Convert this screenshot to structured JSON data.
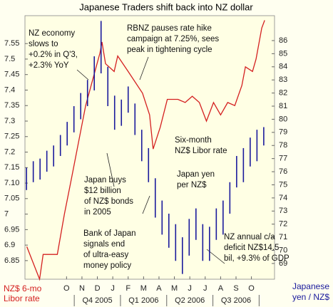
{
  "chart_data": {
    "type": "line-ohlc",
    "title": "Japanese Traders shift back into NZ dollar",
    "y_label": [
      "NZ$ 6-mo",
      "Libor rate"
    ],
    "y2_label": [
      "Japanese",
      "yen / NZ$"
    ],
    "xlim": [
      -2.7,
      13.5
    ],
    "xticks": [
      {
        "value": 0,
        "label": "O"
      },
      {
        "value": 1,
        "label": "N"
      },
      {
        "value": 2,
        "label": "D"
      },
      {
        "value": 3,
        "label": "J"
      },
      {
        "value": 4,
        "label": "F"
      },
      {
        "value": 5,
        "label": "M"
      },
      {
        "value": 6,
        "label": "A"
      },
      {
        "value": 7,
        "label": "M"
      },
      {
        "value": 8,
        "label": "J"
      },
      {
        "value": 9,
        "label": "J"
      },
      {
        "value": 10,
        "label": "A"
      },
      {
        "value": 11,
        "label": "S"
      },
      {
        "value": 12,
        "label": "O"
      }
    ],
    "quarters": [
      "Q4 2005",
      "Q1 2006",
      "Q2 2006",
      "Q3 2006"
    ],
    "ylim": [
      6.79,
      7.64
    ],
    "yticks": [
      6.85,
      6.9,
      6.95,
      7,
      7.05,
      {
        "value": 7.1,
        "label": "7.10"
      },
      7.15,
      7.2,
      7.25,
      7.3,
      7.35,
      7.4,
      7.45,
      7.5,
      7.55
    ],
    "y2lim": [
      67.8,
      87.9
    ],
    "y2ticks": [
      69,
      70,
      71,
      72,
      73,
      74,
      75,
      76,
      77,
      78,
      79,
      80,
      81,
      82,
      83,
      84,
      85,
      86
    ],
    "series": [
      {
        "name": "Six-month NZ$ Libor rate",
        "color": "#d42020",
        "x": [
          -2.58,
          -1.75,
          -1.52,
          -0.6,
          -0.14,
          0.32,
          1.24,
          2.17,
          2.3,
          2.53,
          3.09,
          3.32,
          4.0,
          4.93,
          5.39,
          5.62,
          6.08,
          6.54,
          7.23,
          7.7,
          8.16,
          8.62,
          9.08,
          9.54,
          10.0,
          10.46,
          10.92,
          11.38,
          11.61,
          12.07,
          12.3,
          12.67,
          12.86
        ],
        "values": [
          6.895,
          6.79,
          6.87,
          6.87,
          7.0,
          7.115,
          7.35,
          7.52,
          7.555,
          7.485,
          7.46,
          7.51,
          7.46,
          7.39,
          7.32,
          7.21,
          7.28,
          7.37,
          7.37,
          7.36,
          7.38,
          7.36,
          7.3,
          7.36,
          7.32,
          7.36,
          7.35,
          7.415,
          7.475,
          7.46,
          7.5,
          7.6,
          7.625
        ]
      },
      {
        "name": "Japan yen per NZ$",
        "color": "#1a1a9c",
        "axis": "y2",
        "x": [
          -2.6,
          -2.16,
          -1.72,
          -1.28,
          -0.84,
          -0.4,
          0.04,
          0.48,
          0.92,
          1.36,
          1.8,
          2.24,
          2.68,
          3.12,
          3.56,
          4.0,
          4.44,
          4.88,
          5.32,
          5.76,
          6.2,
          6.64,
          7.08,
          7.52,
          7.96,
          8.4,
          8.84,
          9.28,
          9.72,
          10.16,
          10.6,
          11.04,
          11.48,
          11.92,
          12.36,
          12.8
        ],
        "high": [
          76.3,
          76.8,
          77.0,
          77.6,
          78.0,
          78.8,
          79.8,
          81.0,
          82.0,
          83.0,
          84.8,
          87.5,
          84.0,
          81.8,
          81.5,
          82.5,
          81.2,
          79.2,
          77.8,
          75.5,
          73.8,
          72.8,
          72.0,
          71.0,
          72.4,
          73.2,
          72.0,
          71.8,
          73.2,
          73.8,
          75.2,
          77.2,
          77.8,
          78.6,
          79.2,
          79.4
        ],
        "low": [
          74.6,
          75.2,
          75.4,
          76.0,
          76.4,
          77.2,
          78.0,
          79.0,
          80.0,
          81.0,
          82.2,
          83.5,
          81.0,
          79.2,
          79.5,
          80.5,
          78.8,
          76.8,
          75.2,
          72.5,
          71.2,
          70.2,
          69.2,
          68.2,
          69.6,
          70.8,
          69.2,
          69.2,
          70.8,
          71.2,
          72.8,
          74.8,
          75.2,
          76.4,
          76.8,
          78.0
        ]
      }
    ],
    "annotations": [
      [
        "NZ economy",
        "slows to",
        "+0.2% in Q'3,",
        "+2.3% YoY"
      ],
      [
        "RBNZ pauses rate hike",
        "campaign at 7.25%, sees",
        "peak in tightening cycle"
      ],
      [
        "Six-month",
        "NZ$ Libor rate"
      ],
      [
        "Japan yen",
        "per NZ$"
      ],
      [
        "Japan buys",
        "$12 billion",
        "of NZ$ bonds",
        "in 2005"
      ],
      [
        "Bank of Japan",
        "signals end",
        "of ultra-easy",
        "money policy"
      ],
      [
        "NZ annual c/a",
        "deficit NZ$14.5",
        "bil, +9.3% of GDP"
      ]
    ]
  }
}
